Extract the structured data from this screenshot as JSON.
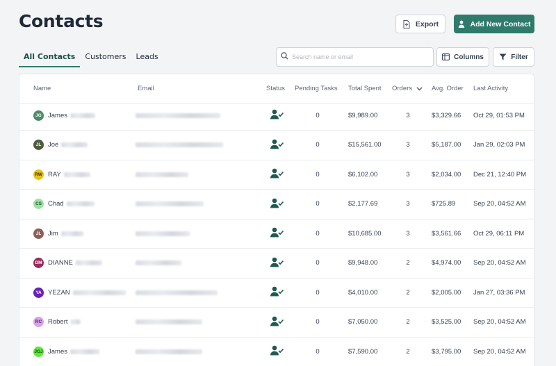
{
  "header": {
    "title": "Contacts",
    "export_label": "Export",
    "add_label": "Add New Contact"
  },
  "tabs": [
    {
      "label": "All Contacts",
      "active": true
    },
    {
      "label": "Customers",
      "active": false
    },
    {
      "label": "Leads",
      "active": false
    }
  ],
  "search": {
    "placeholder": "Search name or email"
  },
  "toolbar": {
    "columns_label": "Columns",
    "filter_label": "Filter"
  },
  "table": {
    "columns": {
      "name": "Name",
      "email": "Email",
      "status": "Status",
      "pending": "Pending Tasks",
      "spent": "Total Spent",
      "orders": "Orders",
      "avg": "Avg. Order",
      "activity": "Last Activity"
    },
    "rows": [
      {
        "initials": "JG",
        "first": "James",
        "avatar_color": "#4e8a68",
        "avatar_text": "#ffffff",
        "pending": "0",
        "spent": "$9,989.00",
        "orders": "3",
        "avg": "$3,329.66",
        "activity": "Oct 29, 01:53 PM"
      },
      {
        "initials": "JL",
        "first": "Joe",
        "avatar_color": "#4f5b3f",
        "avatar_text": "#ffffff",
        "pending": "0",
        "spent": "$15,561.00",
        "orders": "3",
        "avg": "$5,187.00",
        "activity": "Jan 29, 02:03 PM"
      },
      {
        "initials": "RW",
        "first": "RAY",
        "avatar_color": "#e6c21a",
        "avatar_text": "#3a3000",
        "pending": "0",
        "spent": "$6,102.00",
        "orders": "3",
        "avg": "$2,034.00",
        "activity": "Dec 21, 12:40 PM"
      },
      {
        "initials": "CS",
        "first": "Chad",
        "avatar_color": "#9fe0a6",
        "avatar_text": "#1f5a2a",
        "pending": "0",
        "spent": "$2,177.69",
        "orders": "3",
        "avg": "$725.89",
        "activity": "Sep 20, 04:52 AM"
      },
      {
        "initials": "JL",
        "first": "Jim",
        "avatar_color": "#8a5f58",
        "avatar_text": "#ffffff",
        "pending": "0",
        "spent": "$10,685.00",
        "orders": "3",
        "avg": "$3,561.66",
        "activity": "Oct 29, 06:11 PM"
      },
      {
        "initials": "DM",
        "first": "DIANNE",
        "avatar_color": "#9c2b5e",
        "avatar_text": "#ffffff",
        "pending": "0",
        "spent": "$9,948.00",
        "orders": "2",
        "avg": "$4,974.00",
        "activity": "Sep 20, 04:52 AM"
      },
      {
        "initials": "YA",
        "first": "YEZAN",
        "avatar_color": "#6a1fb8",
        "avatar_text": "#ffffff",
        "pending": "0",
        "spent": "$4,010.00",
        "orders": "2",
        "avg": "$2,005.00",
        "activity": "Jan 27, 03:36 PM"
      },
      {
        "initials": "RC",
        "first": "Robert",
        "avatar_color": "#d6a4e8",
        "avatar_text": "#5a1f6e",
        "pending": "0",
        "spent": "$7,050.00",
        "orders": "2",
        "avg": "$3,525.00",
        "activity": "Sep 20, 04:52 AM"
      },
      {
        "initials": "JGJ",
        "first": "James",
        "avatar_color": "#5ce83a",
        "avatar_text": "#1a4a10",
        "pending": "0",
        "spent": "$7,590.00",
        "orders": "2",
        "avg": "$3,795.00",
        "activity": "Sep 20, 04:52 AM"
      }
    ]
  },
  "colors": {
    "accent": "#2f7a6b",
    "status_icon": "#1f5a50"
  },
  "icons": {
    "export": "file-export-icon",
    "add": "person-icon",
    "search": "search-icon",
    "columns": "columns-icon",
    "filter": "filter-icon",
    "status": "user-check-icon",
    "sort": "chevron-down-icon"
  }
}
